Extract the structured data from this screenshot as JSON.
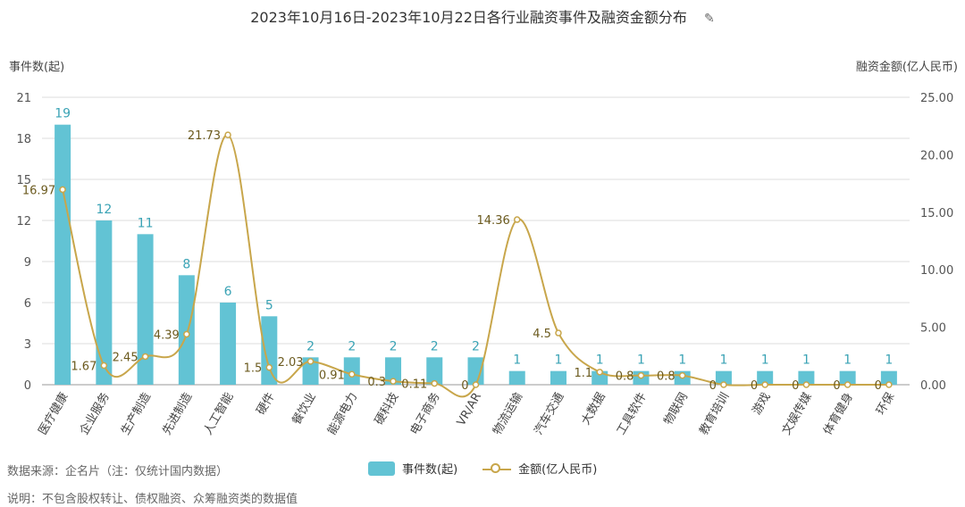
{
  "chart_data": {
    "type": "bar",
    "title": "2023年10月16日-2023年10月22日各行业融资事件及融资金额分布",
    "categories": [
      "医疗健康",
      "企业服务",
      "生产制造",
      "先进制造",
      "人工智能",
      "硬件",
      "餐饮业",
      "能源电力",
      "硬科技",
      "电子商务",
      "VR/AR",
      "物流运输",
      "汽车交通",
      "大数据",
      "工具软件",
      "物联网",
      "教育培训",
      "游戏",
      "文娱传媒",
      "体育健身",
      "环保"
    ],
    "series": [
      {
        "name": "事件数(起)",
        "type": "bar",
        "axis": "left",
        "values": [
          19,
          12,
          11,
          8,
          6,
          5,
          2,
          2,
          2,
          2,
          2,
          1,
          1,
          1,
          1,
          1,
          1,
          1,
          1,
          1,
          1
        ]
      },
      {
        "name": "金额(亿人民币)",
        "type": "line",
        "axis": "right",
        "values": [
          16.97,
          1.67,
          2.45,
          4.39,
          21.73,
          1.5,
          2.03,
          0.91,
          0.3,
          0.11,
          0,
          14.36,
          4.5,
          1.1,
          0.8,
          0.8,
          0,
          0,
          0,
          0,
          0
        ]
      }
    ],
    "ylabel_left": "事件数(起)",
    "ylabel_right": "融资金额(亿人民币)",
    "ylim_left": [
      0,
      21
    ],
    "yticks_left": [
      "0",
      "3",
      "6",
      "9",
      "12",
      "15",
      "18",
      "21"
    ],
    "ylim_right": [
      0,
      25
    ],
    "yticks_right": [
      "0.00",
      "5.00",
      "10.00",
      "15.00",
      "20.00",
      "25.00"
    ],
    "line_labels": [
      "16.97",
      "1.67",
      "2.45",
      "4.39",
      "21.73",
      "1.5",
      "2.03",
      "0.91",
      "0.3",
      "0.11",
      "0",
      "14.36",
      "4.5",
      "1.1",
      "0.8",
      "0.8",
      "0",
      "0",
      "0",
      "0",
      "0"
    ],
    "grid": true,
    "legend_position": "bottom",
    "colors": {
      "bar": "#62c3d4",
      "line": "#c8a64b",
      "bar_label": "#3aa3b5",
      "line_label": "#6b5a1e"
    }
  },
  "notes": {
    "source": "数据来源：企名片（注：仅统计国内数据）",
    "desc": "说明：不包含股权转让、债权融资、众筹融资类的数据值"
  },
  "icons": {
    "edit": "pencil-icon"
  }
}
